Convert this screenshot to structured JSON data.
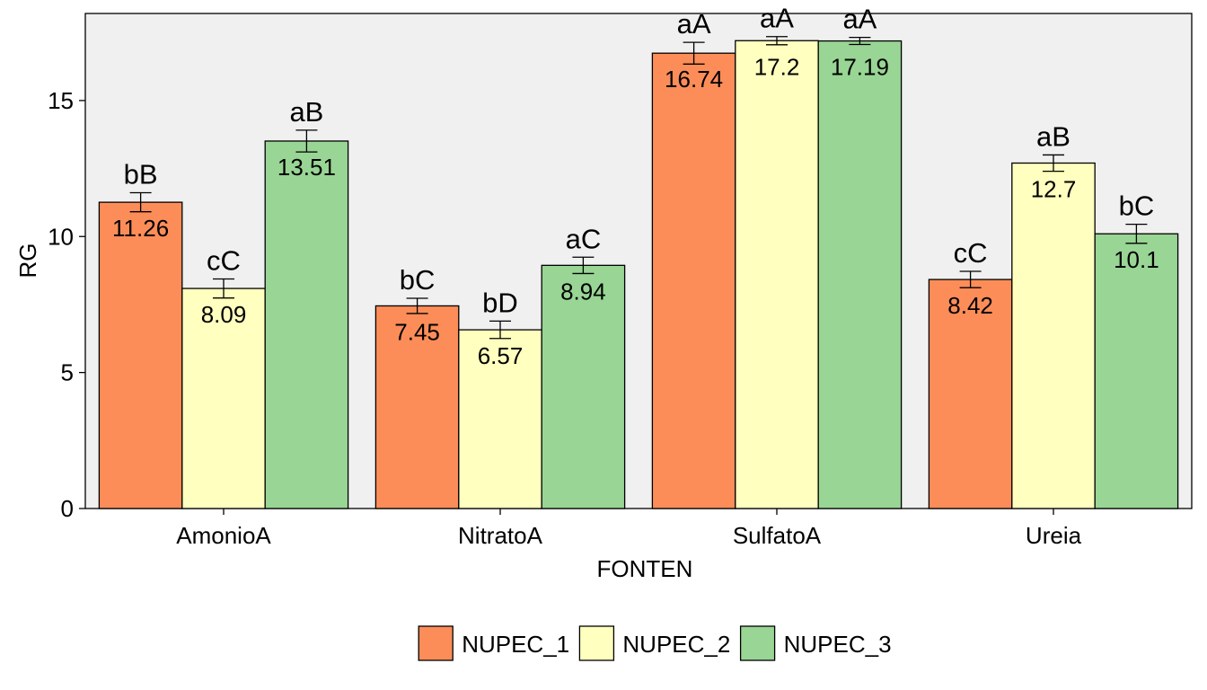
{
  "chart_data": {
    "type": "bar",
    "xlabel": "FONTEN",
    "ylabel": "RG",
    "ylim": [
      0,
      18.2
    ],
    "yticks": [
      0,
      5,
      10,
      15
    ],
    "grid": false,
    "legend_position": "bottom",
    "categories": [
      "AmonioA",
      "NitratoA",
      "SulfatoA",
      "Ureia"
    ],
    "series": [
      {
        "name": "NUPEC_1",
        "color": "#FC8D59",
        "values": [
          11.26,
          7.45,
          16.74,
          8.42
        ],
        "errors": [
          0.35,
          0.28,
          0.4,
          0.3
        ],
        "labels": [
          "11.26",
          "7.45",
          "16.74",
          "8.42"
        ],
        "letters": [
          "bB",
          "bC",
          "aA",
          "cC"
        ]
      },
      {
        "name": "NUPEC_2",
        "color": "#FFFFBF",
        "values": [
          8.09,
          6.57,
          17.2,
          12.7
        ],
        "errors": [
          0.35,
          0.32,
          0.15,
          0.3
        ],
        "labels": [
          "8.09",
          "6.57",
          "17.2",
          "12.7"
        ],
        "letters": [
          "cC",
          "bD",
          "aA",
          "aB"
        ]
      },
      {
        "name": "NUPEC_3",
        "color": "#99D594",
        "values": [
          13.51,
          8.94,
          17.19,
          10.1
        ],
        "errors": [
          0.4,
          0.3,
          0.13,
          0.35
        ],
        "labels": [
          "13.51",
          "8.94",
          "17.19",
          "10.1"
        ],
        "letters": [
          "aB",
          "aC",
          "aA",
          "bC"
        ]
      }
    ]
  }
}
